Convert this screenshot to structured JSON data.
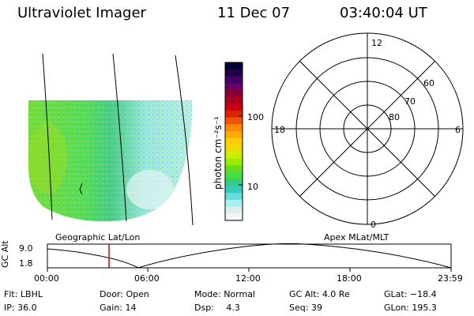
{
  "header": {
    "instrument": "Ultraviolet Imager",
    "date": "11 Dec 07",
    "time": "03:40:04 UT"
  },
  "colorbar": {
    "unit_label": "photon cm⁻²s⁻¹",
    "tick_labels": [
      "100",
      "10"
    ],
    "colors": [
      "#000033",
      "#220044",
      "#440066",
      "#660066",
      "#880033",
      "#aa0022",
      "#cc0011",
      "#dd2200",
      "#ee5500",
      "#ff8800",
      "#ffaa00",
      "#ffcc00",
      "#eedd00",
      "#ccee00",
      "#99ee00",
      "#66dd22",
      "#44dd44",
      "#33cc88",
      "#33ccbb",
      "#66dddd",
      "#aaeeee",
      "#ddeeee",
      "#f4f4f4"
    ]
  },
  "left_map": {
    "caption": "Geographic Lat/Lon"
  },
  "polar_plot": {
    "caption": "Apex MLat/MLT",
    "lat_labels": [
      "60",
      "70",
      "80"
    ],
    "mlt_labels": {
      "top": "12",
      "left": "18",
      "right": "6",
      "bottom": "0"
    }
  },
  "altitude_strip": {
    "axis_label": "GC Alt",
    "y_ticks": [
      "9.0",
      "1.8"
    ],
    "x_ticks": [
      "00:00",
      "06:00",
      "12:00",
      "18:00",
      "23:59"
    ]
  },
  "info": {
    "row1": [
      {
        "key": "Flt:",
        "value": "LBHL"
      },
      {
        "key": "Door:",
        "value": "Open"
      },
      {
        "key": "Mode:",
        "value": "Normal"
      },
      {
        "key": "GC Alt:",
        "value": "4.0 Re"
      },
      {
        "key": "GLat:",
        "value": "−18.4"
      }
    ],
    "row2": [
      {
        "key": "IP:",
        "value": "36.0"
      },
      {
        "key": "Gain:",
        "value": "14"
      },
      {
        "key": "Dsp:",
        "value": "4.3"
      },
      {
        "key": "Seq:",
        "value": "39"
      },
      {
        "key": "GLon:",
        "value": "195.3"
      }
    ]
  }
}
